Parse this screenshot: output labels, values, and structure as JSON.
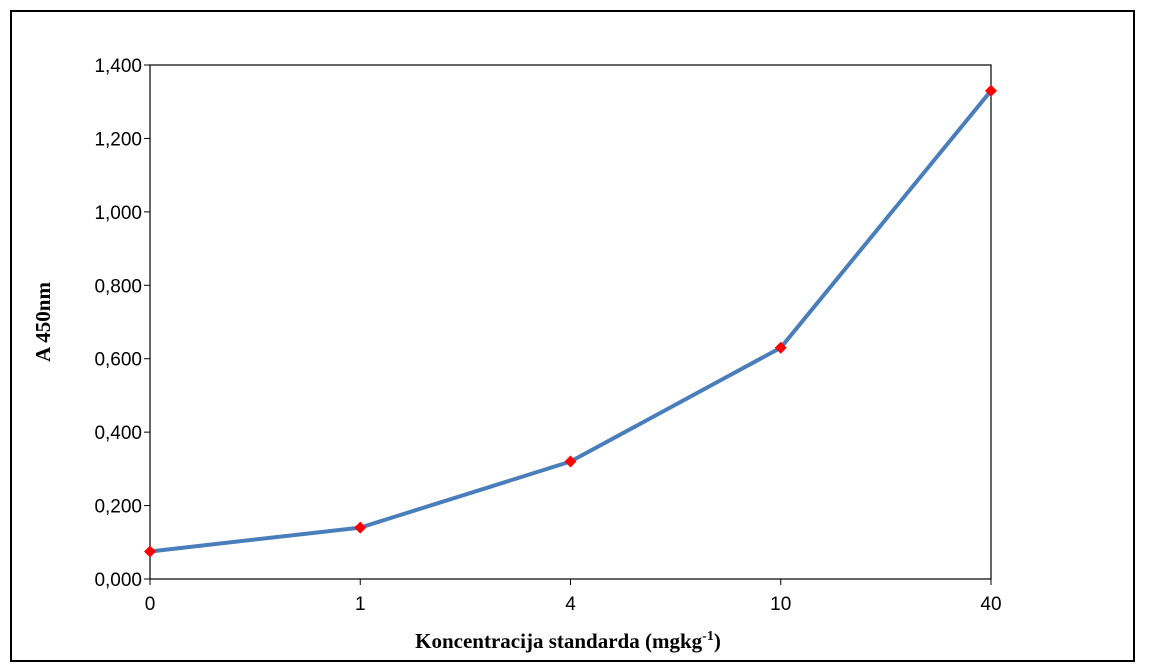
{
  "chart_data": {
    "type": "line",
    "categories": [
      "0",
      "1",
      "4",
      "10",
      "40"
    ],
    "series": [
      {
        "values": [
          0.075,
          0.14,
          0.32,
          0.63,
          1.33
        ],
        "line_color": "#4a7ebb",
        "marker_color": "#ff0000",
        "marker": "diamond"
      }
    ],
    "xlabel": "Koncentracija standarda (mgkg",
    "xlabel_superscript": "-1",
    "xlabel_suffix": ")",
    "ylabel": "A 450nm",
    "ylim": [
      0,
      1.4
    ],
    "yticks": [
      "0,000",
      "0,200",
      "0,400",
      "0,600",
      "0,800",
      "1,000",
      "1,200",
      "1,400"
    ],
    "grid": false,
    "legend": "none"
  }
}
